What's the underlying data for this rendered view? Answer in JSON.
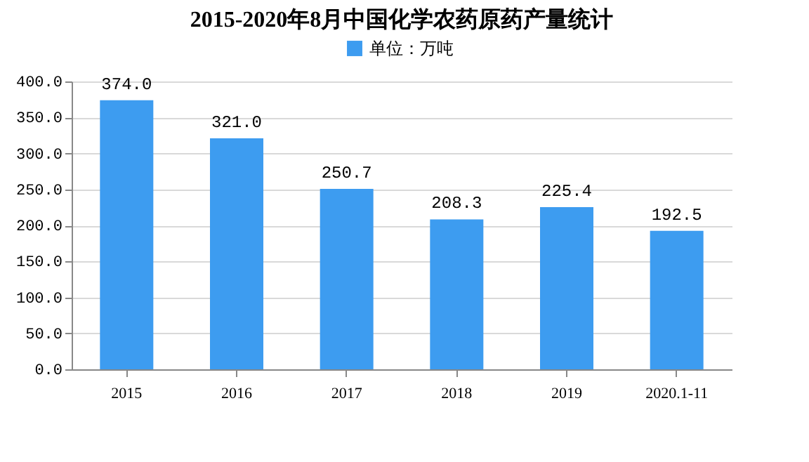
{
  "chart_data": {
    "type": "bar",
    "title": "2015-2020年8月中国化学农药原药产量统计",
    "categories": [
      "2015",
      "2016",
      "2017",
      "2018",
      "2019",
      "2020.1-11"
    ],
    "series": [
      {
        "name": "单位：万吨",
        "color": "#3d9cf0",
        "values": [
          374.0,
          321.0,
          250.7,
          208.3,
          225.4,
          192.5
        ],
        "value_labels": [
          "374.0",
          "321.0",
          "250.7",
          "208.3",
          "225.4",
          "192.5"
        ]
      }
    ],
    "ylim": [
      0,
      400
    ],
    "yticks": [
      {
        "value": 0,
        "label": "0.0"
      },
      {
        "value": 50,
        "label": "50.0"
      },
      {
        "value": 100,
        "label": "100.0"
      },
      {
        "value": 150,
        "label": "150.0"
      },
      {
        "value": 200,
        "label": "200.0"
      },
      {
        "value": 250,
        "label": "250.0"
      },
      {
        "value": 300,
        "label": "300.0"
      },
      {
        "value": 350,
        "label": "350.0"
      },
      {
        "value": 400,
        "label": "400.0"
      }
    ],
    "grid": "y",
    "legend": "top"
  }
}
